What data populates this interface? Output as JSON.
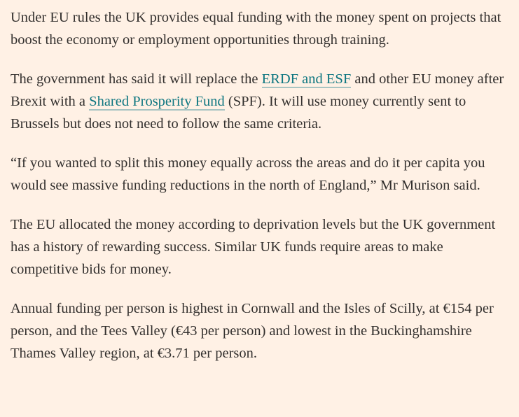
{
  "paragraphs": [
    [
      "Under EU rules the UK provides equal funding with the money spent on projects that boost the economy or employment opportunities through training."
    ],
    [
      "The government has said it will replace the ",
      "ERDF and ESF",
      " and other EU money after Brexit with a ",
      "Shared Prosperity Fund",
      " (SPF). It will use money currently sent to Brussels but does not need to follow the same criteria."
    ],
    [
      "“If you wanted to split this money equally across the areas and do it per capita you would see massive funding reductions in the north of England,” Mr Murison said."
    ],
    [
      "The EU allocated the money according to deprivation levels but the UK government has a history of rewarding success. Similar UK funds require areas to make competitive bids for money."
    ],
    [
      "Annual funding per person is highest in Cornwall and the Isles of Scilly, at €154 per person, and the Tees Valley (€43 per person) and lowest in the Buckinghamshire Thames Valley region, at €3.71 per person."
    ]
  ]
}
